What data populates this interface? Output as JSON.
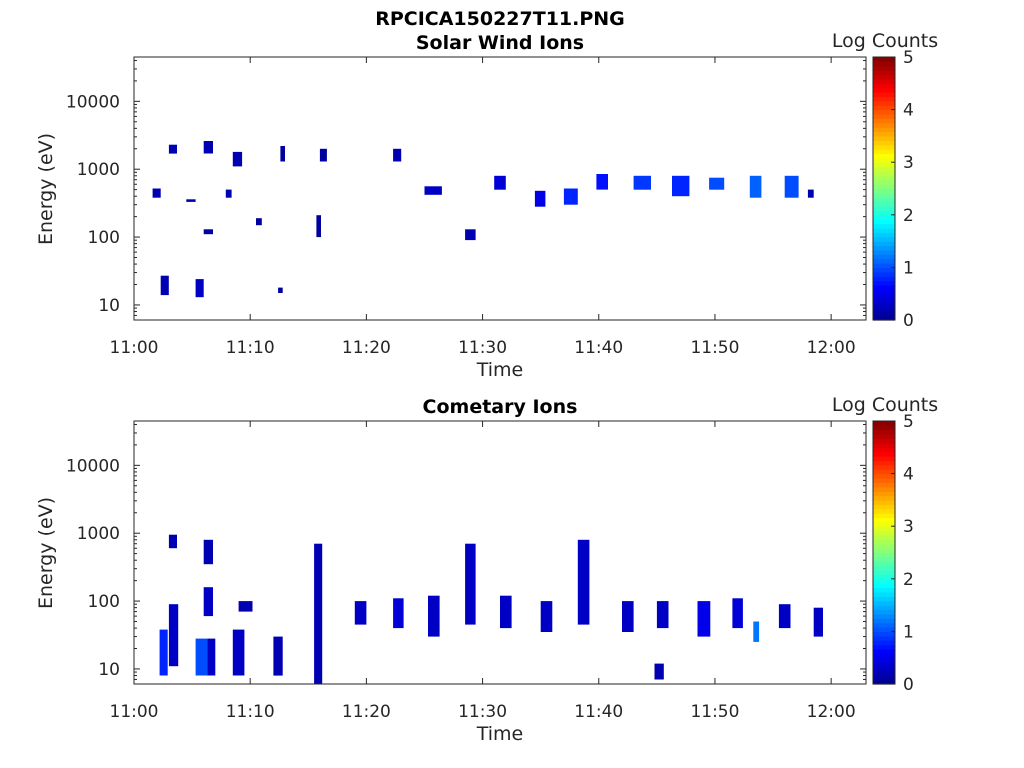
{
  "figure": {
    "title": "RPCICA150227T11.PNG",
    "colormap": [
      "#00008f",
      "#0000ff",
      "#0080ff",
      "#00ffff",
      "#80ff80",
      "#ffff00",
      "#ff8000",
      "#ff0000",
      "#800000"
    ]
  },
  "chart_data": [
    {
      "type": "heatmap",
      "title": "Solar Wind Ions",
      "xlabel": "Time",
      "ylabel": "Energy (eV)",
      "xlim": [
        "11:00",
        "12:03"
      ],
      "ylim": [
        6,
        45000
      ],
      "y_scale": "log",
      "x_ticks": [
        "11:00",
        "11:10",
        "11:20",
        "11:30",
        "11:40",
        "11:50",
        "12:00"
      ],
      "y_ticks": [
        10,
        100,
        1000,
        10000
      ],
      "y_tick_labels": [
        "10",
        "100",
        "1000",
        "10000"
      ],
      "colorbar": {
        "label": "Log Counts",
        "min": 0,
        "max": 5,
        "ticks": [
          "0",
          "1",
          "2",
          "3",
          "4",
          "5"
        ]
      },
      "cells": [
        {
          "t0": "11:01.6",
          "t1": "11:02.3",
          "e0": 380,
          "e1": 520,
          "v": 0.2
        },
        {
          "t0": "11:02.3",
          "t1": "11:03.0",
          "e0": 14,
          "e1": 27,
          "v": 0.2
        },
        {
          "t0": "11:03.0",
          "t1": "11:03.7",
          "e0": 1700,
          "e1": 2300,
          "v": 0.2
        },
        {
          "t0": "11:04.5",
          "t1": "11:05.3",
          "e0": 330,
          "e1": 360,
          "v": 0.2
        },
        {
          "t0": "11:05.3",
          "t1": "11:06.0",
          "e0": 13,
          "e1": 24,
          "v": 0.3
        },
        {
          "t0": "11:06.0",
          "t1": "11:06.8",
          "e0": 1700,
          "e1": 2600,
          "v": 0.2
        },
        {
          "t0": "11:06.0",
          "t1": "11:06.8",
          "e0": 110,
          "e1": 130,
          "v": 0.1
        },
        {
          "t0": "11:07.9",
          "t1": "11:08.4",
          "e0": 380,
          "e1": 500,
          "v": 0.2
        },
        {
          "t0": "11:08.5",
          "t1": "11:09.3",
          "e0": 1100,
          "e1": 1800,
          "v": 0.2
        },
        {
          "t0": "11:10.5",
          "t1": "11:11.0",
          "e0": 150,
          "e1": 190,
          "v": 0.1
        },
        {
          "t0": "11:12.4",
          "t1": "11:12.8",
          "e0": 15,
          "e1": 18,
          "v": 0.1
        },
        {
          "t0": "11:12.6",
          "t1": "11:13.0",
          "e0": 1300,
          "e1": 2200,
          "v": 0.1
        },
        {
          "t0": "11:15.7",
          "t1": "11:16.1",
          "e0": 100,
          "e1": 210,
          "v": 0.1
        },
        {
          "t0": "11:16.0",
          "t1": "11:16.6",
          "e0": 1300,
          "e1": 2000,
          "v": 0.1
        },
        {
          "t0": "11:22.3",
          "t1": "11:23.0",
          "e0": 1300,
          "e1": 2000,
          "v": 0.2
        },
        {
          "t0": "11:25.0",
          "t1": "11:26.5",
          "e0": 420,
          "e1": 560,
          "v": 0.3
        },
        {
          "t0": "11:28.5",
          "t1": "11:29.4",
          "e0": 90,
          "e1": 130,
          "v": 0.2
        },
        {
          "t0": "11:31.0",
          "t1": "11:32.0",
          "e0": 500,
          "e1": 800,
          "v": 0.4
        },
        {
          "t0": "11:34.5",
          "t1": "11:35.4",
          "e0": 280,
          "e1": 480,
          "v": 0.5
        },
        {
          "t0": "11:37.0",
          "t1": "11:38.2",
          "e0": 300,
          "e1": 520,
          "v": 0.8
        },
        {
          "t0": "11:39.8",
          "t1": "11:40.8",
          "e0": 500,
          "e1": 850,
          "v": 0.7
        },
        {
          "t0": "11:43.0",
          "t1": "11:44.5",
          "e0": 500,
          "e1": 800,
          "v": 0.9
        },
        {
          "t0": "11:46.3",
          "t1": "11:47.8",
          "e0": 400,
          "e1": 800,
          "v": 0.8
        },
        {
          "t0": "11:49.5",
          "t1": "11:50.8",
          "e0": 500,
          "e1": 750,
          "v": 1.0
        },
        {
          "t0": "11:53.0",
          "t1": "11:54.0",
          "e0": 380,
          "e1": 800,
          "v": 1.1
        },
        {
          "t0": "11:56.0",
          "t1": "11:57.2",
          "e0": 380,
          "e1": 800,
          "v": 1.0
        },
        {
          "t0": "11:58.0",
          "t1": "11:58.5",
          "e0": 380,
          "e1": 500,
          "v": 0.2
        }
      ]
    },
    {
      "type": "heatmap",
      "title": "Cometary Ions",
      "xlabel": "Time",
      "ylabel": "Energy (eV)",
      "xlim": [
        "11:00",
        "12:03"
      ],
      "ylim": [
        6,
        45000
      ],
      "y_scale": "log",
      "x_ticks": [
        "11:00",
        "11:10",
        "11:20",
        "11:30",
        "11:40",
        "11:50",
        "12:00"
      ],
      "y_ticks": [
        10,
        100,
        1000,
        10000
      ],
      "y_tick_labels": [
        "10",
        "100",
        "1000",
        "10000"
      ],
      "colorbar": {
        "label": "Log Counts",
        "min": 0,
        "max": 5,
        "ticks": [
          "0",
          "1",
          "2",
          "3",
          "4",
          "5"
        ]
      },
      "cells": [
        {
          "t0": "11:02.2",
          "t1": "11:02.9",
          "e0": 8,
          "e1": 38,
          "v": 0.8
        },
        {
          "t0": "11:03.0",
          "t1": "11:03.8",
          "e0": 11,
          "e1": 90,
          "v": 0.3
        },
        {
          "t0": "11:03.0",
          "t1": "11:03.7",
          "e0": 600,
          "e1": 950,
          "v": 0.2
        },
        {
          "t0": "11:05.3",
          "t1": "11:06.3",
          "e0": 8,
          "e1": 28,
          "v": 1.0
        },
        {
          "t0": "11:06.3",
          "t1": "11:07.0",
          "e0": 8,
          "e1": 28,
          "v": 0.3
        },
        {
          "t0": "11:06.0",
          "t1": "11:06.8",
          "e0": 60,
          "e1": 160,
          "v": 0.3
        },
        {
          "t0": "11:06.0",
          "t1": "11:06.8",
          "e0": 350,
          "e1": 800,
          "v": 0.2
        },
        {
          "t0": "11:08.5",
          "t1": "11:09.5",
          "e0": 8,
          "e1": 38,
          "v": 0.3
        },
        {
          "t0": "11:09.0",
          "t1": "11:10.2",
          "e0": 70,
          "e1": 100,
          "v": 0.2
        },
        {
          "t0": "11:12.0",
          "t1": "11:12.8",
          "e0": 8,
          "e1": 30,
          "v": 0.2
        },
        {
          "t0": "11:15.5",
          "t1": "11:16.2",
          "e0": 6,
          "e1": 700,
          "v": 0.2
        },
        {
          "t0": "11:19.0",
          "t1": "11:20.0",
          "e0": 45,
          "e1": 100,
          "v": 0.3
        },
        {
          "t0": "11:22.3",
          "t1": "11:23.2",
          "e0": 40,
          "e1": 110,
          "v": 0.4
        },
        {
          "t0": "11:25.3",
          "t1": "11:26.3",
          "e0": 30,
          "e1": 120,
          "v": 0.3
        },
        {
          "t0": "11:28.5",
          "t1": "11:29.4",
          "e0": 45,
          "e1": 700,
          "v": 0.3
        },
        {
          "t0": "11:31.5",
          "t1": "11:32.5",
          "e0": 40,
          "e1": 120,
          "v": 0.3
        },
        {
          "t0": "11:35.0",
          "t1": "11:36.0",
          "e0": 35,
          "e1": 100,
          "v": 0.3
        },
        {
          "t0": "11:38.2",
          "t1": "11:39.2",
          "e0": 45,
          "e1": 800,
          "v": 0.3
        },
        {
          "t0": "11:42.0",
          "t1": "11:43.0",
          "e0": 35,
          "e1": 100,
          "v": 0.3
        },
        {
          "t0": "11:44.8",
          "t1": "11:45.6",
          "e0": 7,
          "e1": 12,
          "v": 0.2
        },
        {
          "t0": "11:45.0",
          "t1": "11:46.0",
          "e0": 40,
          "e1": 100,
          "v": 0.3
        },
        {
          "t0": "11:48.5",
          "t1": "11:49.6",
          "e0": 30,
          "e1": 100,
          "v": 0.5
        },
        {
          "t0": "11:51.5",
          "t1": "11:52.4",
          "e0": 40,
          "e1": 110,
          "v": 0.4
        },
        {
          "t0": "11:53.3",
          "t1": "11:53.8",
          "e0": 25,
          "e1": 50,
          "v": 1.2
        },
        {
          "t0": "11:55.5",
          "t1": "11:56.5",
          "e0": 40,
          "e1": 90,
          "v": 0.3
        },
        {
          "t0": "11:58.5",
          "t1": "11:59.3",
          "e0": 30,
          "e1": 80,
          "v": 0.3
        }
      ]
    }
  ]
}
